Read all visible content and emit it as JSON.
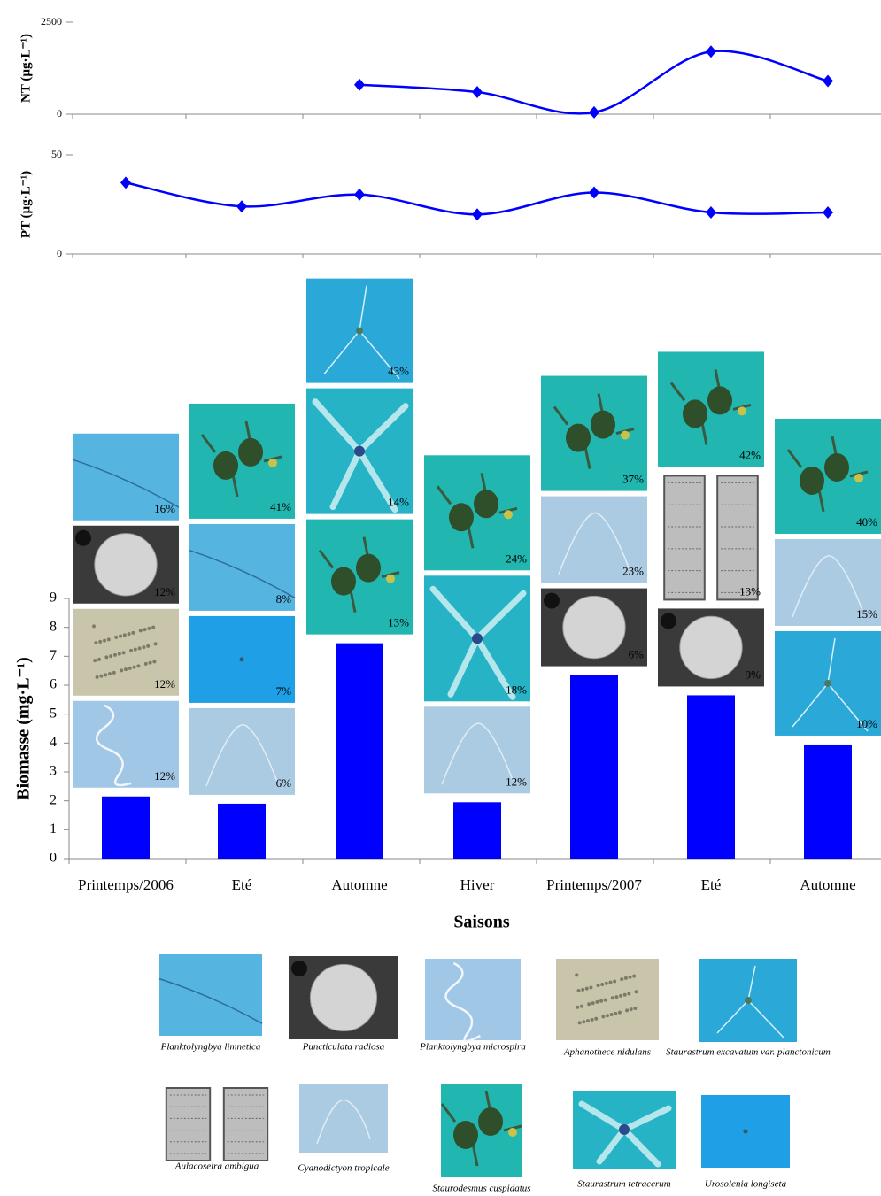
{
  "chart_data": [
    {
      "type": "line",
      "y_label": "NT (µg·L⁻¹)",
      "values": [
        null,
        null,
        800,
        600,
        50,
        1700,
        900
      ],
      "color": "#0000ff",
      "ylim": [
        0,
        2500
      ],
      "yticks": [
        0,
        2500
      ]
    },
    {
      "type": "line",
      "y_label": "PT (µg·L⁻¹)",
      "values": [
        36,
        24,
        30,
        20,
        31,
        21,
        21
      ],
      "color": "#0000ff",
      "ylim": [
        0,
        50
      ],
      "yticks": [
        0,
        50
      ]
    },
    {
      "type": "bar",
      "y_label": "Biomasse (mg·L⁻¹)",
      "x_label": "Saisons",
      "categories": [
        "Printemps/2006",
        "Eté",
        "Automne",
        "Hiver",
        "Printemps/2007",
        "Eté",
        "Automne"
      ],
      "values": [
        2.15,
        1.9,
        7.45,
        1.95,
        6.35,
        5.65,
        3.95
      ],
      "color": "#0000ff",
      "ylim": [
        0,
        9
      ],
      "yticks": [
        0,
        1,
        2,
        3,
        4,
        5,
        6,
        7,
        8,
        9
      ],
      "composition": [
        [
          {
            "species": 2,
            "value": 12,
            "label": "12%"
          },
          {
            "species": 3,
            "value": 12,
            "label": "12%"
          },
          {
            "species": 1,
            "value": 12,
            "label": "12%"
          },
          {
            "species": 0,
            "value": 16,
            "label": "16%"
          }
        ],
        [
          {
            "species": 6,
            "value": 6,
            "label": "6%"
          },
          {
            "species": 9,
            "value": 7,
            "label": "7%"
          },
          {
            "species": 0,
            "value": 8,
            "label": "8%"
          },
          {
            "species": 7,
            "value": 41,
            "label": "41%"
          }
        ],
        [
          {
            "species": 7,
            "value": 13,
            "label": "13%"
          },
          {
            "species": 8,
            "value": 14,
            "label": "14%"
          },
          {
            "species": 4,
            "value": 43,
            "label": "43%"
          }
        ],
        [
          {
            "species": 6,
            "value": 12,
            "label": "12%"
          },
          {
            "species": 8,
            "value": 18,
            "label": "18%"
          },
          {
            "species": 7,
            "value": 24,
            "label": "24%"
          }
        ],
        [
          {
            "species": 1,
            "value": 6,
            "label": "6%"
          },
          {
            "species": 6,
            "value": 23,
            "label": "23%"
          },
          {
            "species": 7,
            "value": 37,
            "label": "37%"
          }
        ],
        [
          {
            "species": 1,
            "value": 9,
            "label": "9%"
          },
          {
            "species": 5,
            "value": 13,
            "label": "13%"
          },
          {
            "species": 7,
            "value": 42,
            "label": "42%"
          }
        ],
        [
          {
            "species": 4,
            "value": 10,
            "label": "10%"
          },
          {
            "species": 6,
            "value": 15,
            "label": "15%"
          },
          {
            "species": 7,
            "value": 40,
            "label": "40%"
          }
        ]
      ]
    }
  ],
  "species": [
    "Planktolyngbya limnetica",
    "Puncticulata radiosa",
    "Planktolyngbya microspira",
    "Aphanothece nidulans",
    "Staurastrum excavatum var. planctonicum",
    "Aulacoseira ambigua",
    "Cyanodictyon tropicale",
    "Staurodesmus cuspidatus",
    "Staurastrum tetracerum",
    "Urosolenia longiseta"
  ]
}
